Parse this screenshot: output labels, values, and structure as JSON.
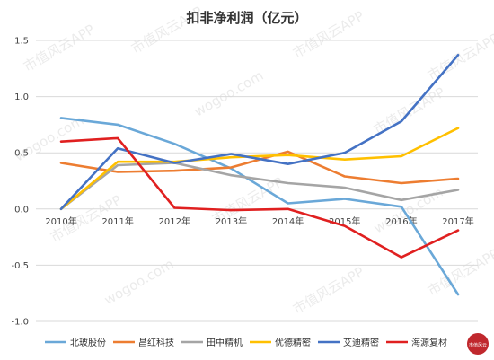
{
  "chart_data": {
    "type": "line",
    "title": "扣非净利润（亿元）",
    "xlabel": "",
    "ylabel": "",
    "categories": [
      "2010年",
      "2011年",
      "2012年",
      "2013年",
      "2014年",
      "2015年",
      "2016年",
      "2017年"
    ],
    "ylim": [
      -1.0,
      1.5
    ],
    "yticks": [
      "1.5",
      "1.0",
      "0.5",
      "0.0",
      "-0.5",
      "-1.0"
    ],
    "grid": "horizontal",
    "legend_position": "bottom",
    "series": [
      {
        "name": "北玻股份",
        "color": "#6aa8d8",
        "values": [
          0.81,
          0.75,
          0.58,
          0.36,
          0.05,
          0.09,
          0.02,
          -0.76
        ]
      },
      {
        "name": "昌红科技",
        "color": "#ed7d31",
        "values": [
          0.41,
          0.33,
          0.34,
          0.37,
          0.51,
          0.29,
          0.23,
          0.27
        ]
      },
      {
        "name": "田中精机",
        "color": "#a5a5a5",
        "values": [
          0.0,
          0.39,
          0.41,
          0.3,
          0.23,
          0.19,
          0.08,
          0.17
        ]
      },
      {
        "name": "优德精密",
        "color": "#ffc000",
        "values": [
          0.0,
          0.42,
          0.42,
          0.46,
          0.48,
          0.44,
          0.47,
          0.72
        ]
      },
      {
        "name": "艾迪精密",
        "color": "#4472c4",
        "values": [
          0.0,
          0.54,
          0.41,
          0.49,
          0.4,
          0.5,
          0.78,
          1.37
        ]
      },
      {
        "name": "海源复材",
        "color": "#e02020",
        "values": [
          0.6,
          0.63,
          0.01,
          -0.01,
          0.0,
          -0.15,
          -0.43,
          -0.19
        ]
      }
    ]
  },
  "watermark": {
    "text_a": "市值风云APP",
    "text_b": "wogoo.com"
  },
  "logo": {
    "text": "市值风云"
  }
}
